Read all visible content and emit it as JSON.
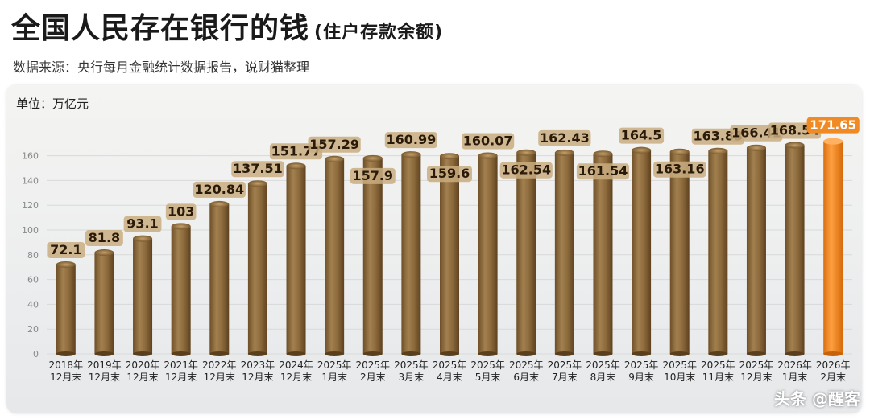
{
  "header": {
    "title": "全国人民存在银行的钱",
    "title_paren": "(住户存款余额)",
    "source": "数据来源：央行每月金融统计数据报告，说财猫整理",
    "unit": "单位：万亿元"
  },
  "watermark": "头条 @醒客",
  "colors": {
    "bar": "#8c6a3c",
    "bar_highlight": "#f08a24",
    "label_bg": "#c9ad80"
  },
  "chart_data": {
    "type": "bar",
    "ylim": [
      0,
      180
    ],
    "yticks": [
      0,
      20,
      40,
      60,
      80,
      100,
      120,
      140,
      160
    ],
    "grid": true,
    "categories": [
      [
        "2018年",
        "12月末"
      ],
      [
        "2019年",
        "12月末"
      ],
      [
        "2020年",
        "12月末"
      ],
      [
        "2021年",
        "12月末"
      ],
      [
        "2022年",
        "12月末"
      ],
      [
        "2023年",
        "12月末"
      ],
      [
        "2024年",
        "12月末"
      ],
      [
        "2025年",
        "1月末"
      ],
      [
        "2025年",
        "2月末"
      ],
      [
        "2025年",
        "3月末"
      ],
      [
        "2025年",
        "4月末"
      ],
      [
        "2025年",
        "5月末"
      ],
      [
        "2025年",
        "6月末"
      ],
      [
        "2025年",
        "7月末"
      ],
      [
        "2025年",
        "8月末"
      ],
      [
        "2025年",
        "9月末"
      ],
      [
        "2025年",
        "10月末"
      ],
      [
        "2025年",
        "11月末"
      ],
      [
        "2025年",
        "12月末"
      ],
      [
        "2026年",
        "1月末"
      ],
      [
        "2026年",
        "2月末"
      ]
    ],
    "values": [
      72.1,
      81.8,
      93.1,
      103,
      120.84,
      137.51,
      151.77,
      157.29,
      157.9,
      160.99,
      159.6,
      160.07,
      162.54,
      162.43,
      161.54,
      164.5,
      163.16,
      163.83,
      166.41,
      168.54,
      171.65
    ],
    "value_labels": [
      "72.1",
      "81.8",
      "93.1",
      "103",
      "120.84",
      "137.51",
      "151.77",
      "157.29",
      "157.9",
      "160.99",
      "159.6",
      "160.07",
      "162.54",
      "162.43",
      "161.54",
      "164.5",
      "163.16",
      "163.83",
      "166.41",
      "168.54",
      "171.65"
    ],
    "highlight_index": 20
  }
}
